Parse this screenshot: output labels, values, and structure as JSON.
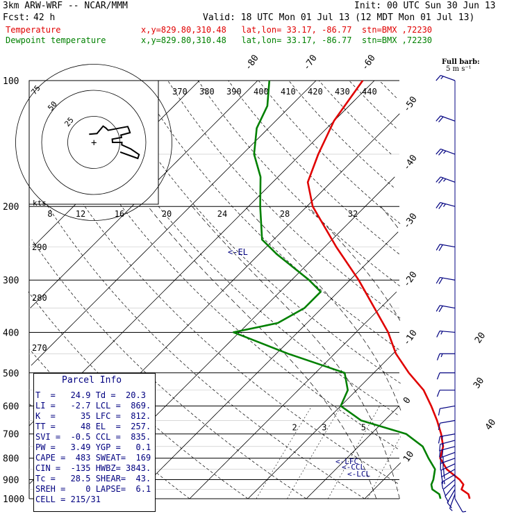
{
  "header": {
    "model": "3km ARW-WRF -- NCAR/MMM",
    "init": "Init: 00 UTC Sun 30 Jun 13",
    "fcst_label": "Fcst:",
    "fcst_value": "42 h",
    "valid": "Valid: 18 UTC Mon 01 Jul 13 (12 MDT Mon 01 Jul 13)",
    "temp_label": "Temperature",
    "temp_loc": "x,y=829.80,310.48   lat,lon= 33.17, -86.77  stn=BMX ,72230",
    "dew_label": "Dewpoint temperature",
    "dew_loc": "x,y=829.80,310.48   lat,lon= 33.17, -86.77  stn=BMX ,72230",
    "full_barb": "Full barb:",
    "full_barb_units": "5 m s⁻¹"
  },
  "colors": {
    "temperature": "#e00000",
    "dewpoint": "#008000",
    "wind": "#000080",
    "grid": "#000000"
  },
  "parcel_info": {
    "title": "Parcel Info",
    "rows": [
      "T  =   24.9 Td =  20.3",
      "LI =   -2.7 LCL =  869.",
      "K  =     35 LFC =  812.",
      "TT =     48 EL  =  257.",
      "SVI =  -0.5 CCL =  835.",
      "PW =   3.49 YGP =   0.1",
      "CAPE =  483 SWEAT=  169",
      "CIN =  -135 HWBZ= 3843.",
      "Tc =   28.5 SHEAR=  43.",
      "SREH =    0 LAPSE=  6.1",
      "CELL = 215/31"
    ]
  },
  "chart_data": {
    "type": "line",
    "title": "",
    "pressure_levels": [
      1000,
      900,
      800,
      700,
      600,
      500,
      400,
      300,
      200,
      100
    ],
    "isotherm_labels": [
      -80,
      -70,
      -60,
      -50,
      -40,
      -30,
      -20,
      -10,
      0,
      10,
      20,
      30,
      40
    ],
    "theta_labels": [
      370,
      380,
      390,
      400,
      410,
      420,
      430,
      440,
      290,
      280,
      270
    ],
    "mixing_ratio_labels": [
      2,
      3,
      5,
      8,
      12,
      20
    ],
    "mixing_ratio_top_labels": [
      8,
      12,
      16,
      20,
      24,
      28,
      32
    ],
    "annotations": [
      "<-EL",
      "<-LFC",
      "<-CCL",
      "<-LCL"
    ],
    "hodograph": {
      "units": "kts",
      "ring_labels": [
        25,
        50,
        75
      ]
    },
    "series": [
      {
        "name": "Temperature",
        "points": [
          [
            1000,
            28
          ],
          [
            975,
            27
          ],
          [
            950,
            25
          ],
          [
            925,
            24.5
          ],
          [
            900,
            23
          ],
          [
            850,
            19
          ],
          [
            800,
            16
          ],
          [
            750,
            14.5
          ],
          [
            700,
            12
          ],
          [
            650,
            9
          ],
          [
            600,
            5.5
          ],
          [
            550,
            1.5
          ],
          [
            500,
            -4
          ],
          [
            450,
            -9.5
          ],
          [
            400,
            -14.5
          ],
          [
            350,
            -21
          ],
          [
            300,
            -28.5
          ],
          [
            250,
            -38
          ],
          [
            200,
            -49
          ],
          [
            175,
            -54
          ],
          [
            150,
            -57
          ],
          [
            125,
            -60
          ],
          [
            100,
            -62
          ]
        ]
      },
      {
        "name": "Dewpoint temperature",
        "points": [
          [
            1000,
            23
          ],
          [
            975,
            22
          ],
          [
            950,
            20
          ],
          [
            925,
            19
          ],
          [
            900,
            18.5
          ],
          [
            850,
            17
          ],
          [
            800,
            14
          ],
          [
            750,
            11
          ],
          [
            700,
            6
          ],
          [
            650,
            -4
          ],
          [
            600,
            -10
          ],
          [
            550,
            -11.5
          ],
          [
            500,
            -15
          ],
          [
            450,
            -28
          ],
          [
            400,
            -41
          ],
          [
            380,
            -35
          ],
          [
            350,
            -33
          ],
          [
            320,
            -33
          ],
          [
            300,
            -37
          ],
          [
            260,
            -47
          ],
          [
            240,
            -52
          ],
          [
            200,
            -58
          ],
          [
            170,
            -63
          ],
          [
            150,
            -68
          ],
          [
            130,
            -72
          ],
          [
            115,
            -74
          ],
          [
            100,
            -78
          ]
        ]
      }
    ],
    "wind_barbs": [
      {
        "p": 1000,
        "spd": 5,
        "dir": 150
      },
      {
        "p": 975,
        "spd": 5,
        "dir": 200
      },
      {
        "p": 950,
        "spd": 10,
        "dir": 210
      },
      {
        "p": 925,
        "spd": 10,
        "dir": 220
      },
      {
        "p": 900,
        "spd": 10,
        "dir": 230
      },
      {
        "p": 875,
        "spd": 15,
        "dir": 240
      },
      {
        "p": 850,
        "spd": 15,
        "dir": 240
      },
      {
        "p": 825,
        "spd": 20,
        "dir": 245
      },
      {
        "p": 800,
        "spd": 20,
        "dir": 250
      },
      {
        "p": 775,
        "spd": 20,
        "dir": 250
      },
      {
        "p": 750,
        "spd": 20,
        "dir": 255
      },
      {
        "p": 725,
        "spd": 15,
        "dir": 255
      },
      {
        "p": 700,
        "spd": 15,
        "dir": 260
      },
      {
        "p": 650,
        "spd": 10,
        "dir": 260
      },
      {
        "p": 600,
        "spd": 10,
        "dir": 260
      },
      {
        "p": 550,
        "spd": 10,
        "dir": 270
      },
      {
        "p": 500,
        "spd": 10,
        "dir": 270
      },
      {
        "p": 450,
        "spd": 15,
        "dir": 270
      },
      {
        "p": 400,
        "spd": 15,
        "dir": 275
      },
      {
        "p": 350,
        "spd": 20,
        "dir": 280
      },
      {
        "p": 300,
        "spd": 20,
        "dir": 280
      },
      {
        "p": 250,
        "spd": 20,
        "dir": 280
      },
      {
        "p": 200,
        "spd": 25,
        "dir": 285
      },
      {
        "p": 175,
        "spd": 25,
        "dir": 290
      },
      {
        "p": 150,
        "spd": 25,
        "dir": 290
      },
      {
        "p": 125,
        "spd": 20,
        "dir": 290
      },
      {
        "p": 100,
        "spd": 15,
        "dir": 290
      }
    ]
  }
}
